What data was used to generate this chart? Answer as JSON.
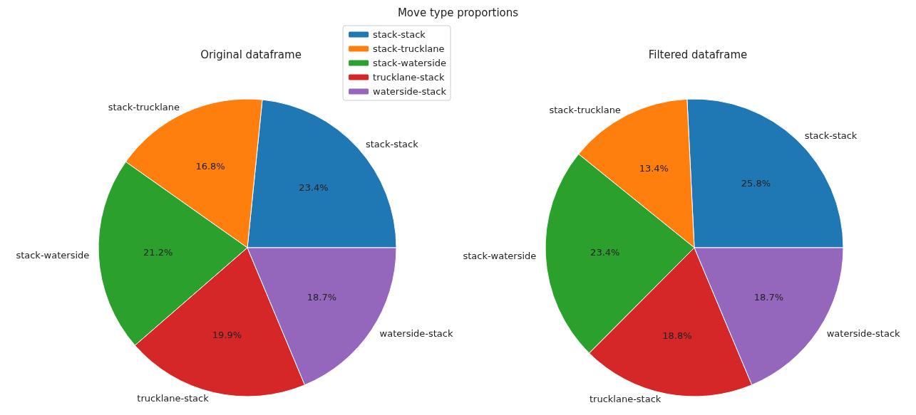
{
  "chart_data": [
    {
      "type": "pie",
      "title": "Original dataframe",
      "annotations": [
        "Move type proportions"
      ],
      "legend": "top right",
      "categories": [
        "stack-stack",
        "stack-trucklane",
        "stack-waterside",
        "trucklane-stack",
        "waterside-stack"
      ],
      "values": [
        23.4,
        16.8,
        21.2,
        19.9,
        18.7
      ],
      "value_labels": [
        "23.4%",
        "16.8%",
        "21.2%",
        "19.9%",
        "18.7%"
      ],
      "colors": [
        "#1f77b4",
        "#ff7f0e",
        "#2ca02c",
        "#d62728",
        "#9467bd"
      ]
    },
    {
      "type": "pie",
      "title": "Filtered dataframe",
      "categories": [
        "stack-stack",
        "stack-trucklane",
        "stack-waterside",
        "trucklane-stack",
        "waterside-stack"
      ],
      "values": [
        25.8,
        13.4,
        23.4,
        18.8,
        18.7
      ],
      "value_labels": [
        "25.8%",
        "13.4%",
        "23.4%",
        "18.8%",
        "18.7%"
      ],
      "colors": [
        "#1f77b4",
        "#ff7f0e",
        "#2ca02c",
        "#d62728",
        "#9467bd"
      ]
    }
  ]
}
